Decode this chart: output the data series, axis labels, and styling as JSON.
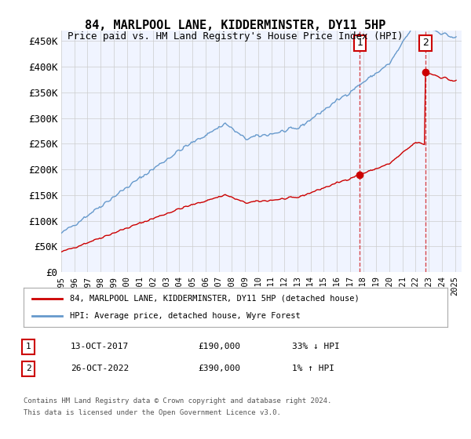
{
  "title": "84, MARLPOOL LANE, KIDDERMINSTER, DY11 5HP",
  "subtitle": "Price paid vs. HM Land Registry's House Price Index (HPI)",
  "xlabel": "",
  "ylabel": "",
  "background_color": "#ffffff",
  "plot_bg_color": "#f0f4ff",
  "grid_color": "#cccccc",
  "sale1_date_label": "13-OCT-2017",
  "sale1_price": 190000,
  "sale1_hpi_pct": "33% ↓ HPI",
  "sale2_date_label": "26-OCT-2022",
  "sale2_price": 390000,
  "sale2_hpi_pct": "1% ↑ HPI",
  "legend_label_red": "84, MARLPOOL LANE, KIDDERMINSTER, DY11 5HP (detached house)",
  "legend_label_blue": "HPI: Average price, detached house, Wyre Forest",
  "footer_line1": "Contains HM Land Registry data © Crown copyright and database right 2024.",
  "footer_line2": "This data is licensed under the Open Government Licence v3.0.",
  "red_color": "#cc0000",
  "blue_color": "#6699cc",
  "sale_marker_color": "#cc0000",
  "dashed_color": "#cc0000",
  "yticks": [
    0,
    50000,
    100000,
    150000,
    200000,
    250000,
    300000,
    350000,
    400000,
    450000
  ],
  "ylim": [
    0,
    470000
  ],
  "xlim_start": 1995.0,
  "xlim_end": 2025.5
}
